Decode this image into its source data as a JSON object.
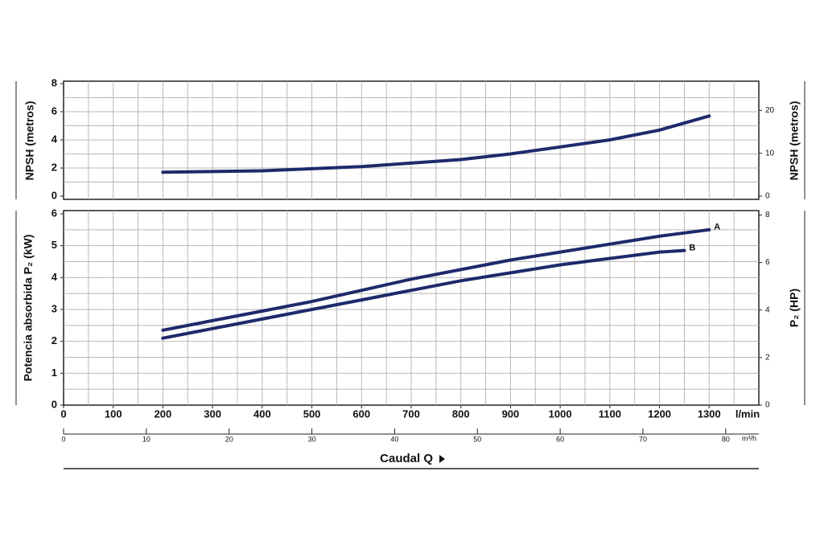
{
  "chart_data": [
    {
      "type": "line",
      "ylabel": "NPSH (metros)",
      "y2label": "NPSH (metros)",
      "x": [
        200,
        300,
        400,
        500,
        600,
        700,
        800,
        900,
        1000,
        1100,
        1200,
        1300
      ],
      "series": [
        {
          "color": "#1e2a6b",
          "values": [
            1.7,
            1.75,
            1.8,
            1.95,
            2.1,
            2.35,
            2.6,
            3.0,
            3.5,
            4.0,
            4.7,
            5.7
          ]
        }
      ],
      "xlim": [
        0,
        1400
      ],
      "xgrid": [
        50,
        100,
        150,
        200,
        250,
        300,
        350,
        400,
        450,
        500,
        550,
        600,
        650,
        700,
        750,
        800,
        850,
        900,
        950,
        1000,
        1050,
        1100,
        1150,
        1200,
        1250,
        1300,
        1350
      ],
      "ylim": [
        0,
        8
      ],
      "yticks": [
        0,
        2,
        4,
        6,
        8
      ],
      "ygrid": [
        1,
        2,
        3,
        4,
        5,
        6,
        7
      ],
      "y2lim": [
        0,
        26.25
      ],
      "y2ticks": [
        0,
        10,
        20
      ]
    },
    {
      "type": "line",
      "ylabel": "Potencia absorbida P₂ (kW)",
      "y2label": "P₂ (HP)",
      "x": [
        200,
        300,
        400,
        500,
        600,
        700,
        800,
        900,
        1000,
        1100,
        1200,
        1250,
        1300
      ],
      "series": [
        {
          "name": "A",
          "color": "#1e2a6b",
          "values": [
            2.35,
            2.65,
            2.95,
            3.25,
            3.6,
            3.95,
            4.25,
            4.55,
            4.8,
            5.05,
            5.3,
            5.4,
            5.5
          ]
        },
        {
          "name": "B",
          "color": "#1e2a6b",
          "values": [
            2.1,
            2.4,
            2.7,
            3.0,
            3.3,
            3.6,
            3.9,
            4.15,
            4.4,
            4.6,
            4.8,
            4.85,
            null
          ]
        }
      ],
      "xlim": [
        0,
        1400
      ],
      "xticks": [
        0,
        100,
        200,
        300,
        400,
        500,
        600,
        700,
        800,
        900,
        1000,
        1100,
        1200,
        1300
      ],
      "xgrid": [
        50,
        100,
        150,
        200,
        250,
        300,
        350,
        400,
        450,
        500,
        550,
        600,
        650,
        700,
        750,
        800,
        850,
        900,
        950,
        1000,
        1050,
        1100,
        1150,
        1200,
        1250,
        1300,
        1350
      ],
      "xunit": "l/min",
      "x2lim": [
        0,
        84
      ],
      "x2ticks": [
        0,
        10,
        20,
        30,
        40,
        50,
        60,
        70,
        80
      ],
      "x2unit": "m³/h",
      "xlabel": "Caudal Q",
      "ylim": [
        0,
        6
      ],
      "yticks": [
        0,
        1,
        2,
        3,
        4,
        5,
        6
      ],
      "ygrid": [
        0.5,
        1,
        1.5,
        2,
        2.5,
        3,
        3.5,
        4,
        4.5,
        5,
        5.5
      ],
      "y2lim": [
        0,
        8.05
      ],
      "y2ticks": [
        0,
        2,
        4,
        6,
        8
      ]
    }
  ]
}
